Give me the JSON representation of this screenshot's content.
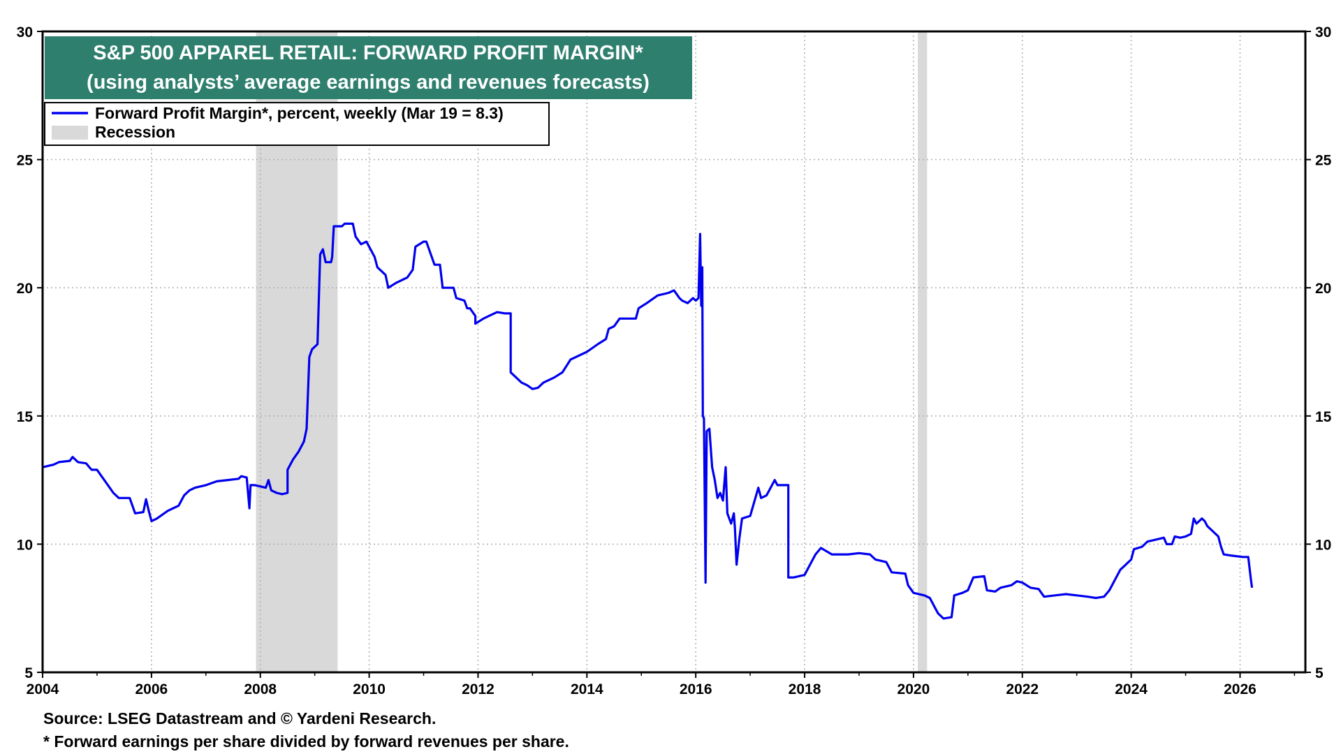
{
  "chart_data": {
    "type": "line",
    "title": "S&P 500 APPAREL RETAIL: FORWARD PROFIT MARGIN*",
    "subtitle": "(using analysts’ average earnings and revenues forecasts)",
    "xlim": [
      2004,
      2027.2
    ],
    "ylim": [
      5,
      30
    ],
    "x_ticks": [
      2004,
      2006,
      2008,
      2010,
      2012,
      2014,
      2016,
      2018,
      2020,
      2022,
      2024,
      2026
    ],
    "x_tick_labels": [
      "2004",
      "2006",
      "2008",
      "2010",
      "2012",
      "2014",
      "2016",
      "2018",
      "2020",
      "2022",
      "2024",
      "2026"
    ],
    "y_ticks": [
      5,
      10,
      15,
      20,
      25,
      30
    ],
    "y_tick_labels": [
      "5",
      "10",
      "15",
      "20",
      "25",
      "30"
    ],
    "grid": true,
    "recessions": [
      [
        2007.92,
        2009.42
      ],
      [
        2020.08,
        2020.25
      ]
    ],
    "legend": [
      {
        "label": "Forward Profit Margin*, percent, weekly (Mar 19 = 8.3)",
        "kind": "line",
        "color": "#0000ee"
      },
      {
        "label": "Recession",
        "kind": "band",
        "color": "#d9d9d9"
      }
    ],
    "series": [
      {
        "name": "Forward Profit Margin*, percent, weekly (Mar 19 = 8.3)",
        "color": "#0000ee",
        "points": [
          [
            2004.0,
            13.0
          ],
          [
            2004.2,
            13.1
          ],
          [
            2004.3,
            13.2
          ],
          [
            2004.5,
            13.25
          ],
          [
            2004.55,
            13.4
          ],
          [
            2004.65,
            13.2
          ],
          [
            2004.8,
            13.15
          ],
          [
            2004.9,
            12.9
          ],
          [
            2005.0,
            12.9
          ],
          [
            2005.1,
            12.6
          ],
          [
            2005.2,
            12.3
          ],
          [
            2005.3,
            12.0
          ],
          [
            2005.4,
            11.8
          ],
          [
            2005.6,
            11.8
          ],
          [
            2005.7,
            11.2
          ],
          [
            2005.85,
            11.25
          ],
          [
            2005.9,
            11.75
          ],
          [
            2005.95,
            11.3
          ],
          [
            2006.0,
            10.9
          ],
          [
            2006.1,
            11.0
          ],
          [
            2006.3,
            11.3
          ],
          [
            2006.5,
            11.5
          ],
          [
            2006.6,
            11.9
          ],
          [
            2006.7,
            12.1
          ],
          [
            2006.8,
            12.2
          ],
          [
            2007.0,
            12.3
          ],
          [
            2007.2,
            12.45
          ],
          [
            2007.4,
            12.5
          ],
          [
            2007.6,
            12.55
          ],
          [
            2007.65,
            12.65
          ],
          [
            2007.75,
            12.6
          ],
          [
            2007.8,
            11.4
          ],
          [
            2007.82,
            12.3
          ],
          [
            2007.9,
            12.3
          ],
          [
            2008.1,
            12.2
          ],
          [
            2008.15,
            12.5
          ],
          [
            2008.2,
            12.1
          ],
          [
            2008.3,
            12.0
          ],
          [
            2008.4,
            11.95
          ],
          [
            2008.5,
            12.0
          ],
          [
            2008.5,
            12.9
          ],
          [
            2008.6,
            13.3
          ],
          [
            2008.7,
            13.6
          ],
          [
            2008.8,
            14.0
          ],
          [
            2008.85,
            14.5
          ],
          [
            2008.9,
            17.3
          ],
          [
            2008.95,
            17.6
          ],
          [
            2009.05,
            17.8
          ],
          [
            2009.1,
            21.3
          ],
          [
            2009.15,
            21.5
          ],
          [
            2009.2,
            21.0
          ],
          [
            2009.3,
            21.0
          ],
          [
            2009.32,
            21.2
          ],
          [
            2009.35,
            22.4
          ],
          [
            2009.5,
            22.4
          ],
          [
            2009.55,
            22.5
          ],
          [
            2009.7,
            22.5
          ],
          [
            2009.75,
            22.0
          ],
          [
            2009.85,
            21.7
          ],
          [
            2009.95,
            21.8
          ],
          [
            2010.1,
            21.2
          ],
          [
            2010.15,
            20.8
          ],
          [
            2010.3,
            20.5
          ],
          [
            2010.35,
            20.0
          ],
          [
            2010.5,
            20.2
          ],
          [
            2010.7,
            20.4
          ],
          [
            2010.8,
            20.7
          ],
          [
            2010.85,
            21.6
          ],
          [
            2011.0,
            21.8
          ],
          [
            2011.05,
            21.8
          ],
          [
            2011.15,
            21.2
          ],
          [
            2011.2,
            20.9
          ],
          [
            2011.3,
            20.9
          ],
          [
            2011.35,
            20.0
          ],
          [
            2011.55,
            20.0
          ],
          [
            2011.6,
            19.6
          ],
          [
            2011.75,
            19.5
          ],
          [
            2011.8,
            19.2
          ],
          [
            2011.85,
            19.2
          ],
          [
            2011.95,
            18.9
          ],
          [
            2011.95,
            18.6
          ],
          [
            2012.1,
            18.8
          ],
          [
            2012.2,
            18.9
          ],
          [
            2012.35,
            19.05
          ],
          [
            2012.5,
            19.0
          ],
          [
            2012.6,
            19.0
          ],
          [
            2012.6,
            16.7
          ],
          [
            2012.7,
            16.5
          ],
          [
            2012.8,
            16.3
          ],
          [
            2012.9,
            16.2
          ],
          [
            2013.0,
            16.05
          ],
          [
            2013.1,
            16.1
          ],
          [
            2013.2,
            16.3
          ],
          [
            2013.4,
            16.5
          ],
          [
            2013.55,
            16.7
          ],
          [
            2013.7,
            17.2
          ],
          [
            2013.8,
            17.3
          ],
          [
            2014.0,
            17.5
          ],
          [
            2014.2,
            17.8
          ],
          [
            2014.35,
            18.0
          ],
          [
            2014.4,
            18.4
          ],
          [
            2014.5,
            18.5
          ],
          [
            2014.6,
            18.8
          ],
          [
            2014.8,
            18.8
          ],
          [
            2014.9,
            18.8
          ],
          [
            2014.95,
            19.2
          ],
          [
            2015.1,
            19.4
          ],
          [
            2015.3,
            19.7
          ],
          [
            2015.5,
            19.8
          ],
          [
            2015.6,
            19.9
          ],
          [
            2015.7,
            19.6
          ],
          [
            2015.75,
            19.5
          ],
          [
            2015.85,
            19.4
          ],
          [
            2015.95,
            19.6
          ],
          [
            2016.0,
            19.5
          ],
          [
            2016.05,
            19.6
          ],
          [
            2016.08,
            22.1
          ],
          [
            2016.1,
            19.3
          ],
          [
            2016.12,
            20.8
          ],
          [
            2016.13,
            15.0
          ],
          [
            2016.15,
            14.9
          ],
          [
            2016.18,
            8.5
          ],
          [
            2016.2,
            14.4
          ],
          [
            2016.25,
            14.5
          ],
          [
            2016.3,
            13.0
          ],
          [
            2016.35,
            12.5
          ],
          [
            2016.4,
            11.8
          ],
          [
            2016.45,
            12.0
          ],
          [
            2016.5,
            11.7
          ],
          [
            2016.55,
            13.0
          ],
          [
            2016.58,
            11.2
          ],
          [
            2016.65,
            10.8
          ],
          [
            2016.7,
            11.2
          ],
          [
            2016.72,
            10.6
          ],
          [
            2016.75,
            9.2
          ],
          [
            2016.8,
            10.2
          ],
          [
            2016.85,
            11.0
          ],
          [
            2017.0,
            11.1
          ],
          [
            2017.15,
            12.2
          ],
          [
            2017.2,
            11.8
          ],
          [
            2017.3,
            11.9
          ],
          [
            2017.35,
            12.1
          ],
          [
            2017.45,
            12.5
          ],
          [
            2017.5,
            12.3
          ],
          [
            2017.7,
            12.3
          ],
          [
            2017.7,
            8.7
          ],
          [
            2017.8,
            8.7
          ],
          [
            2018.0,
            8.8
          ],
          [
            2018.1,
            9.2
          ],
          [
            2018.2,
            9.6
          ],
          [
            2018.3,
            9.85
          ],
          [
            2018.5,
            9.6
          ],
          [
            2018.8,
            9.6
          ],
          [
            2019.0,
            9.65
          ],
          [
            2019.2,
            9.6
          ],
          [
            2019.3,
            9.4
          ],
          [
            2019.5,
            9.3
          ],
          [
            2019.6,
            8.9
          ],
          [
            2019.85,
            8.85
          ],
          [
            2019.9,
            8.4
          ],
          [
            2020.0,
            8.1
          ],
          [
            2020.2,
            8.0
          ],
          [
            2020.3,
            7.9
          ],
          [
            2020.4,
            7.5
          ],
          [
            2020.45,
            7.3
          ],
          [
            2020.55,
            7.1
          ],
          [
            2020.7,
            7.15
          ],
          [
            2020.75,
            8.0
          ],
          [
            2020.9,
            8.1
          ],
          [
            2021.0,
            8.2
          ],
          [
            2021.1,
            8.7
          ],
          [
            2021.3,
            8.75
          ],
          [
            2021.35,
            8.2
          ],
          [
            2021.5,
            8.15
          ],
          [
            2021.6,
            8.3
          ],
          [
            2021.8,
            8.4
          ],
          [
            2021.9,
            8.55
          ],
          [
            2022.0,
            8.5
          ],
          [
            2022.15,
            8.3
          ],
          [
            2022.3,
            8.25
          ],
          [
            2022.4,
            7.95
          ],
          [
            2022.6,
            8.0
          ],
          [
            2022.8,
            8.05
          ],
          [
            2023.0,
            8.0
          ],
          [
            2023.2,
            7.95
          ],
          [
            2023.35,
            7.9
          ],
          [
            2023.5,
            7.95
          ],
          [
            2023.6,
            8.2
          ],
          [
            2023.7,
            8.6
          ],
          [
            2023.8,
            9.0
          ],
          [
            2023.9,
            9.2
          ],
          [
            2024.0,
            9.4
          ],
          [
            2024.05,
            9.8
          ],
          [
            2024.2,
            9.9
          ],
          [
            2024.3,
            10.1
          ],
          [
            2024.5,
            10.2
          ],
          [
            2024.6,
            10.25
          ],
          [
            2024.65,
            10.0
          ],
          [
            2024.75,
            10.0
          ],
          [
            2024.8,
            10.3
          ],
          [
            2024.9,
            10.25
          ],
          [
            2025.0,
            10.3
          ],
          [
            2025.1,
            10.4
          ],
          [
            2025.15,
            11.0
          ],
          [
            2025.2,
            10.8
          ],
          [
            2025.3,
            11.0
          ],
          [
            2025.35,
            10.9
          ],
          [
            2025.4,
            10.7
          ],
          [
            2025.5,
            10.5
          ],
          [
            2025.6,
            10.3
          ],
          [
            2025.65,
            9.9
          ],
          [
            2025.7,
            9.6
          ],
          [
            2025.85,
            9.55
          ],
          [
            2026.05,
            9.5
          ],
          [
            2026.15,
            9.5
          ],
          [
            2026.2,
            8.6
          ],
          [
            2026.22,
            8.3
          ]
        ]
      }
    ],
    "source": "Source: LSEG Datastream and © Yardeni Research.",
    "footnote": "* Forward earnings per share divided by forward revenues per share."
  },
  "colors": {
    "line": "#0000ee",
    "recession": "#d9d9d9",
    "title_bg": "#2e7f6e",
    "grid": "#b3b3b3",
    "frame": "#000000"
  }
}
